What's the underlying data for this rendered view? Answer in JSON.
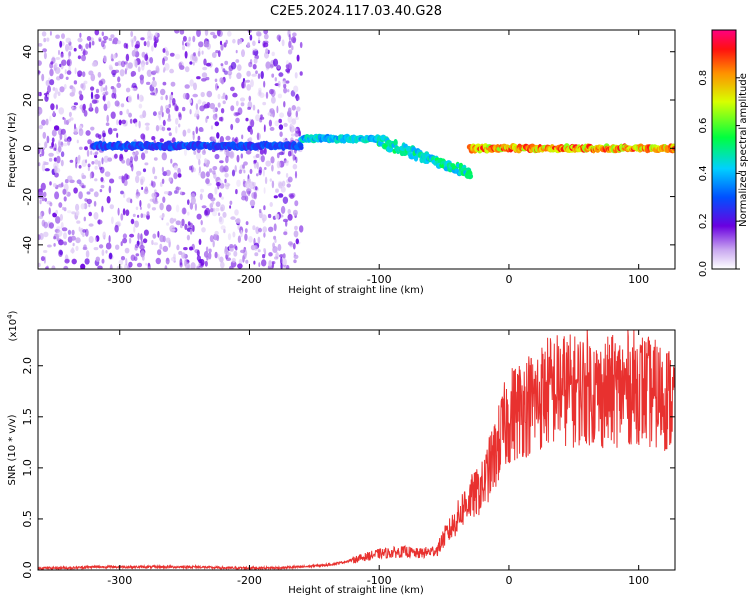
{
  "title": "C2E5.2024.117.03.40.G28",
  "chart_data": [
    {
      "type": "heatmap",
      "xlabel": "Height of straight line (km)",
      "ylabel": "Frequency (Hz)",
      "xlim": [
        -363,
        128
      ],
      "ylim": [
        -50,
        49
      ],
      "x_ticks": [
        -300,
        -200,
        -100,
        0,
        100
      ],
      "x_tick_labels": [
        "-300",
        "-200",
        "-100",
        "0",
        "100"
      ],
      "y_ticks": [
        -40,
        -20,
        0,
        20,
        40
      ],
      "y_tick_labels": [
        "-40",
        "-20",
        "0",
        "20",
        "40"
      ],
      "colorbar": {
        "label": "Normalized spectral amplitude",
        "range": [
          0,
          1
        ],
        "ticks": [
          0.0,
          0.2,
          0.4,
          0.6,
          0.8
        ],
        "tick_labels": [
          "0.0",
          "0.2",
          "0.4",
          "0.6",
          "0.8"
        ]
      },
      "features": [
        {
          "x_range": [
            -363,
            -160
          ],
          "freq_range": [
            -50,
            49
          ],
          "amplitude": 0.15,
          "note": "diffuse noise"
        },
        {
          "x_range": [
            -320,
            -160
          ],
          "freq_center": 1,
          "amplitude": 0.3
        },
        {
          "x_range": [
            -160,
            -100
          ],
          "freq_center": 4,
          "amplitude": 0.45
        },
        {
          "x_range": [
            -100,
            -30
          ],
          "freq_center_start": 3,
          "freq_center_end": -10,
          "amplitude": 0.5
        },
        {
          "x_range": [
            -30,
            128
          ],
          "freq_center": 0,
          "amplitude": 0.85
        }
      ],
      "grid": false
    },
    {
      "type": "line",
      "xlabel": "Height of straight line (km)",
      "ylabel": "SNR (10 * v/v)",
      "y_scale_label": "(x10",
      "y_scale_exponent": "4",
      "y_scale_close": ")",
      "xlim": [
        -363,
        128
      ],
      "ylim": [
        0,
        2.35
      ],
      "x_ticks": [
        -300,
        -200,
        -100,
        0,
        100
      ],
      "x_tick_labels": [
        "-300",
        "-200",
        "-100",
        "0",
        "100"
      ],
      "y_ticks": [
        0.0,
        0.5,
        1.0,
        1.5,
        2.0
      ],
      "y_tick_labels": [
        "0.0",
        "0.5",
        "1.0",
        "1.5",
        "2.0"
      ],
      "series": [
        {
          "color": "#e8312f",
          "x": [
            -363,
            -340,
            -320,
            -300,
            -280,
            -260,
            -240,
            -220,
            -200,
            -180,
            -160,
            -140,
            -130,
            -120,
            -110,
            -100,
            -90,
            -80,
            -70,
            -60,
            -55,
            -50,
            -45,
            -40,
            -35,
            -30,
            -25,
            -20,
            -15,
            -10,
            -5,
            0,
            10,
            20,
            30,
            40,
            50,
            60,
            70,
            80,
            90,
            100,
            110,
            120,
            128
          ],
          "y": [
            0.02,
            0.02,
            0.03,
            0.03,
            0.03,
            0.03,
            0.03,
            0.02,
            0.02,
            0.02,
            0.03,
            0.05,
            0.07,
            0.1,
            0.13,
            0.16,
            0.17,
            0.18,
            0.16,
            0.18,
            0.2,
            0.32,
            0.4,
            0.5,
            0.62,
            0.7,
            0.75,
            0.82,
            1.0,
            1.15,
            1.35,
            1.5,
            1.6,
            1.65,
            1.75,
            1.78,
            1.75,
            1.8,
            1.72,
            1.75,
            1.78,
            1.8,
            1.72,
            1.7,
            1.65
          ]
        }
      ],
      "grid": false
    }
  ]
}
